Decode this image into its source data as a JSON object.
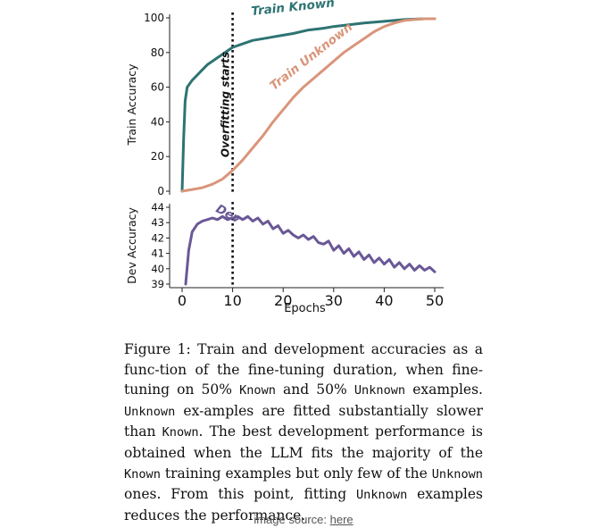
{
  "chart_data": [
    {
      "type": "line",
      "ylabel": "Train Accuracy",
      "xlim": [
        0,
        50
      ],
      "ylim": [
        0,
        100
      ],
      "yticks": [
        0,
        20,
        40,
        60,
        80,
        100
      ],
      "grid": false,
      "series": [
        {
          "name": "Train Known",
          "color": "#2e7373",
          "x": [
            0,
            0.3,
            0.6,
            1,
            2,
            3,
            4,
            5,
            6,
            7,
            8,
            9,
            10,
            12,
            14,
            16,
            18,
            20,
            22,
            25,
            28,
            30,
            33,
            36,
            40,
            44,
            48,
            50
          ],
          "y": [
            0,
            30,
            52,
            60,
            64,
            67,
            70,
            73,
            75,
            77,
            79,
            81,
            83,
            85,
            87,
            88,
            89,
            90,
            91,
            93,
            94,
            95,
            96,
            97,
            98,
            99,
            99.5,
            99.5
          ]
        },
        {
          "name": "Train Unknown",
          "color": "#d9957a",
          "x": [
            0,
            2,
            4,
            6,
            8,
            10,
            12,
            14,
            16,
            18,
            20,
            22,
            24,
            26,
            28,
            30,
            32,
            34,
            36,
            38,
            40,
            42,
            44,
            46,
            48,
            50
          ],
          "y": [
            0,
            1,
            2,
            4,
            7,
            12,
            18,
            25,
            32,
            40,
            47,
            54,
            60,
            65,
            70,
            75,
            80,
            84,
            88,
            92,
            95,
            97,
            98.5,
            99,
            99.5,
            99.5
          ]
        }
      ],
      "annotations": [
        {
          "text": "Train Known",
          "x": 22,
          "y": 104,
          "rotation": -6,
          "color": "#2e7373"
        },
        {
          "text": "Train Unknown",
          "x": 26,
          "y": 76,
          "rotation": -38,
          "color": "#d9957a"
        },
        {
          "text": "Overfitting starts",
          "x": 9.3,
          "y": 50,
          "rotation": -90,
          "color": "#111111"
        }
      ],
      "vline": {
        "x": 10,
        "style": "dotted"
      }
    },
    {
      "type": "line",
      "xlabel": "Epochs",
      "ylabel": "Dev Accuracy",
      "xlim": [
        0,
        50
      ],
      "ylim": [
        39,
        44
      ],
      "xticks": [
        0,
        10,
        20,
        30,
        40,
        50
      ],
      "yticks": [
        39,
        40,
        41,
        42,
        43,
        44
      ],
      "grid": false,
      "series": [
        {
          "name": "Dev",
          "color": "#6a5896",
          "x": [
            0.7,
            1.3,
            2,
            3,
            4,
            5,
            6,
            7,
            8,
            9,
            10,
            11,
            12,
            13,
            14,
            15,
            16,
            17,
            18,
            19,
            20,
            21,
            22,
            23,
            24,
            25,
            26,
            27,
            28,
            29,
            30,
            31,
            32,
            33,
            34,
            35,
            36,
            37,
            38,
            39,
            40,
            41,
            42,
            43,
            44,
            45,
            46,
            47,
            48,
            49,
            50
          ],
          "y": [
            39,
            41.2,
            42.4,
            42.9,
            43.1,
            43.2,
            43.3,
            43.2,
            43.4,
            43.2,
            43.3,
            43.4,
            43.2,
            43.4,
            43.1,
            43.3,
            42.9,
            43.1,
            42.6,
            42.8,
            42.3,
            42.5,
            42.2,
            42.0,
            42.2,
            41.9,
            42.1,
            41.7,
            41.6,
            41.8,
            41.2,
            41.5,
            41.0,
            41.3,
            40.8,
            41.1,
            40.6,
            40.9,
            40.4,
            40.7,
            40.3,
            40.6,
            40.1,
            40.4,
            40.0,
            40.3,
            39.9,
            40.2,
            39.9,
            40.1,
            39.8
          ]
        }
      ],
      "annotations": [
        {
          "text": "Dev",
          "x": 8.8,
          "y": 43.35,
          "rotation": 28,
          "color": "#6a5896"
        }
      ],
      "vline": {
        "x": 10,
        "style": "dotted"
      }
    }
  ],
  "caption": {
    "p1": "Figure 1: Train and development accuracies as a func-tion of the fine-tuning duration, when fine-tuning on ",
    "pct1": "50%",
    "m1": "Known",
    "t2": " and ",
    "pct2": "50%",
    "m2": "Unknown",
    "t3": " examples. ",
    "m3": "Unknown",
    "t4": " ex-amples are fitted substantially slower than ",
    "m4": "Known",
    "t5": ". The best development performance is obtained when the LLM fits the majority of the ",
    "m5": "Known",
    "t6": " training examples but only few of the ",
    "m6": "Unknown",
    "t7": " ones.  From this point, fitting ",
    "m7": "Unknown",
    "t8": " examples reduces the performance."
  },
  "source": {
    "prefix": "image source: ",
    "link_text": "here"
  }
}
